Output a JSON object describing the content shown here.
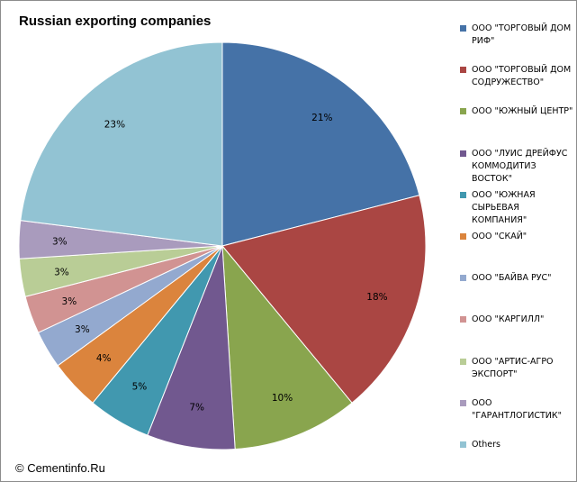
{
  "chart_data": {
    "type": "pie",
    "title": "Russian exporting companies",
    "legend_position": "right",
    "slices": [
      {
        "label": "ООО \"ТОРГОВЫЙ ДОМ РИФ\"",
        "value": 21,
        "value_label": "21%",
        "color": "#4572A7"
      },
      {
        "label": "ООО \"ТОРГОВЫЙ ДОМ СОДРУЖЕСТВО\"",
        "value": 18,
        "value_label": "18%",
        "color": "#AA4643"
      },
      {
        "label": "ООО \"ЮЖНЫЙ ЦЕНТР\"",
        "value": 10,
        "value_label": "10%",
        "color": "#89A54E"
      },
      {
        "label": "ООО \"ЛУИС ДРЕЙФУС КОММОДИТИЗ ВОСТОК\"",
        "value": 7,
        "value_label": "7%",
        "color": "#71588F"
      },
      {
        "label": "ООО \"ЮЖНАЯ СЫРЬЕВАЯ КОМПАНИЯ\"",
        "value": 5,
        "value_label": "5%",
        "color": "#4198AF"
      },
      {
        "label": "ООО \"СКАЙ\"",
        "value": 4,
        "value_label": "4%",
        "color": "#DB843D"
      },
      {
        "label": "ООО \"БАЙВА РУС\"",
        "value": 3,
        "value_label": "3%",
        "color": "#93A9CF"
      },
      {
        "label": "ООО \"КАРГИЛЛ\"",
        "value": 3,
        "value_label": "3%",
        "color": "#D19392"
      },
      {
        "label": "ООО \"АРТИС-АГРО ЭКСПОРТ\"",
        "value": 3,
        "value_label": "3%",
        "color": "#B9CD96"
      },
      {
        "label": "ООО \"ГАРАНТЛОГИСТИК\"",
        "value": 3,
        "value_label": "3%",
        "color": "#A99BBD"
      },
      {
        "label": "Others",
        "value": 23,
        "value_label": "23%",
        "color": "#92C3D3"
      }
    ]
  },
  "footer": {
    "watermark": "© Cementinfo.Ru"
  }
}
